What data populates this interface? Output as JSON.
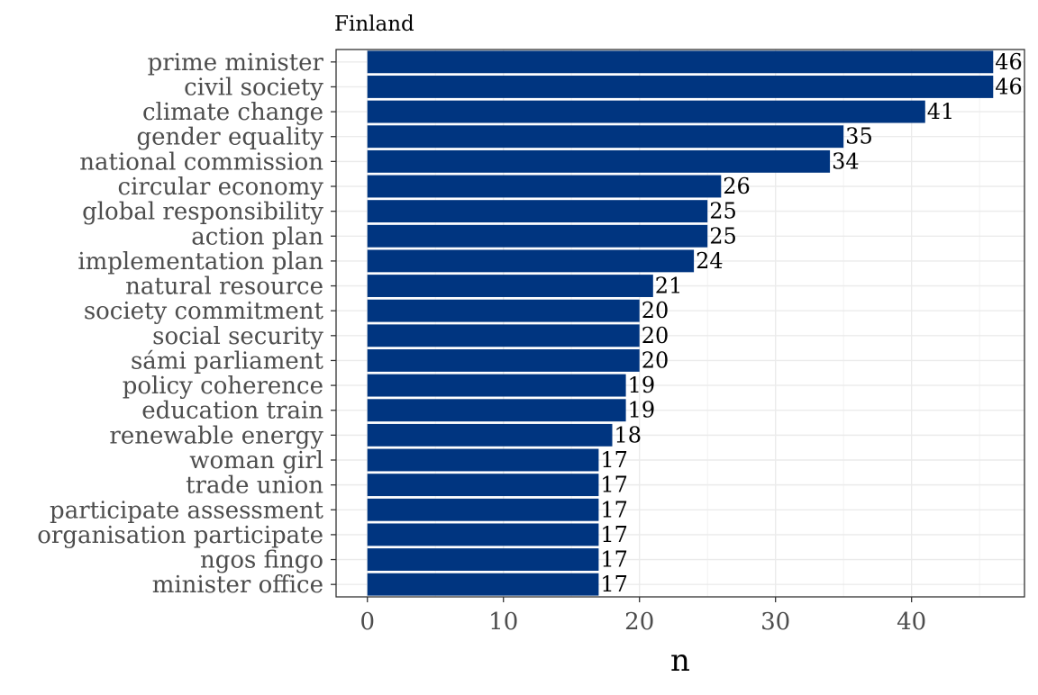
{
  "chart_data": {
    "type": "bar",
    "orientation": "horizontal",
    "title": "Finland",
    "xlabel": "n",
    "ylabel": "",
    "categories": [
      "prime minister",
      "civil society",
      "climate change",
      "gender equality",
      "national commission",
      "circular economy",
      "global responsibility",
      "action plan",
      "implementation plan",
      "natural resource",
      "society commitment",
      "social security",
      "sámi parliament",
      "policy coherence",
      "education train",
      "renewable energy",
      "woman girl",
      "trade union",
      "participate assessment",
      "organisation participate",
      "ngos fingo",
      "minister office"
    ],
    "values": [
      46,
      46,
      41,
      35,
      34,
      26,
      25,
      25,
      24,
      21,
      20,
      20,
      20,
      19,
      19,
      18,
      17,
      17,
      17,
      17,
      17,
      17
    ],
    "xlim": [
      -2.3,
      48.3
    ],
    "x_ticks": [
      0,
      10,
      20,
      30,
      40
    ],
    "grid": true,
    "bar_color": "#003580",
    "show_data_labels": true
  }
}
